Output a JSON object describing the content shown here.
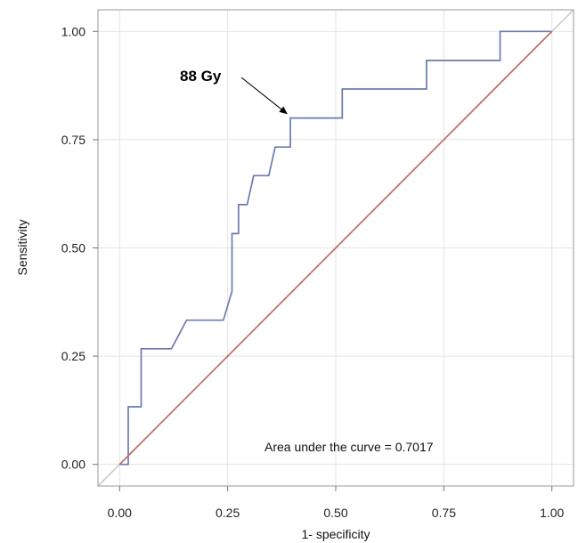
{
  "chart_data": {
    "type": "line",
    "title": "",
    "xlabel": "1- specificity",
    "ylabel": "Sensitivity",
    "xlim": [
      -0.05,
      1.05
    ],
    "ylim": [
      -0.05,
      1.05
    ],
    "x_ticks": [
      "0.00",
      "0.25",
      "0.50",
      "0.75",
      "1.00"
    ],
    "y_ticks": [
      "0.00",
      "0.25",
      "0.50",
      "0.75",
      "1.00"
    ],
    "tick_values": [
      0,
      0.25,
      0.5,
      0.75,
      1.0
    ],
    "grid": true,
    "series": [
      {
        "color": "#6b7bb0",
        "points": [
          [
            0.0,
            0.0
          ],
          [
            0.02,
            0.0
          ],
          [
            0.02,
            0.133
          ],
          [
            0.05,
            0.133
          ],
          [
            0.05,
            0.267
          ],
          [
            0.12,
            0.267
          ],
          [
            0.155,
            0.333
          ],
          [
            0.24,
            0.333
          ],
          [
            0.26,
            0.4
          ],
          [
            0.26,
            0.533
          ],
          [
            0.275,
            0.533
          ],
          [
            0.275,
            0.6
          ],
          [
            0.295,
            0.6
          ],
          [
            0.31,
            0.667
          ],
          [
            0.345,
            0.667
          ],
          [
            0.36,
            0.733
          ],
          [
            0.395,
            0.733
          ],
          [
            0.395,
            0.8
          ],
          [
            0.515,
            0.8
          ],
          [
            0.515,
            0.867
          ],
          [
            0.71,
            0.867
          ],
          [
            0.71,
            0.933
          ],
          [
            0.88,
            0.933
          ],
          [
            0.88,
            1.0
          ],
          [
            1.0,
            1.0
          ]
        ]
      },
      {
        "color": "#c0736a",
        "points": [
          [
            0,
            0
          ],
          [
            1,
            1
          ]
        ]
      }
    ],
    "annotations": {
      "auc_text": "Area under the curve = 0.7017",
      "callout_label": "88 Gy",
      "callout_point": [
        0.395,
        0.8
      ]
    }
  }
}
